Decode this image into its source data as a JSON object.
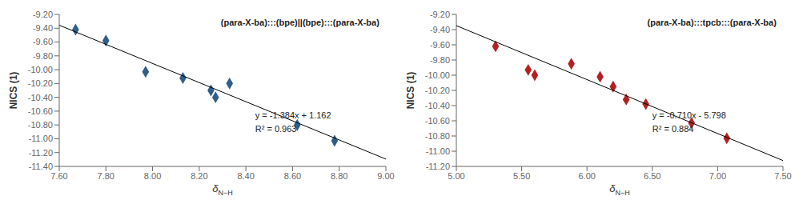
{
  "chart_data": [
    {
      "type": "scatter",
      "title": "(para-X-ba):::(bpe)||(bpe):::(para-X-ba)",
      "xlabel": "δN−H",
      "ylabel": "NICS (1)",
      "xlim": [
        7.6,
        9.0
      ],
      "ylim": [
        -11.4,
        -9.2
      ],
      "xticks": [
        {
          "value": 7.6,
          "label": "7.60"
        },
        {
          "value": 7.8,
          "label": "7.80"
        },
        {
          "value": 8.0,
          "label": "8.00"
        },
        {
          "value": 8.2,
          "label": "8.20"
        },
        {
          "value": 8.4,
          "label": "8.40"
        },
        {
          "value": 8.6,
          "label": "8.60"
        },
        {
          "value": 8.8,
          "label": "8.80"
        },
        {
          "value": 9.0,
          "label": "9.00"
        }
      ],
      "yticks": [
        {
          "value": -11.4,
          "label": "-11.40"
        },
        {
          "value": -11.2,
          "label": "-11.20"
        },
        {
          "value": -11.0,
          "label": "-11.00"
        },
        {
          "value": -10.8,
          "label": "-10.80"
        },
        {
          "value": -10.6,
          "label": "-10.60"
        },
        {
          "value": -10.4,
          "label": "-10.40"
        },
        {
          "value": -10.2,
          "label": "-10.20"
        },
        {
          "value": -10.0,
          "label": "-10.00"
        },
        {
          "value": -9.8,
          "label": "-9.80"
        },
        {
          "value": -9.6,
          "label": "-9.60"
        },
        {
          "value": -9.4,
          "label": "-9.40"
        },
        {
          "value": -9.2,
          "label": "-9.20"
        }
      ],
      "series": [
        {
          "type": "scatter",
          "color": "#2E5F8A",
          "marker": "diamond",
          "x": [
            7.67,
            7.8,
            7.97,
            8.13,
            8.25,
            8.27,
            8.33,
            8.62,
            8.78
          ],
          "values": [
            -9.42,
            -9.58,
            -10.03,
            -10.12,
            -10.3,
            -10.4,
            -10.2,
            -10.8,
            -11.03
          ]
        },
        {
          "type": "line",
          "color": "#000000",
          "x": [
            7.6,
            9.0
          ],
          "values": [
            -9.3564,
            -11.294
          ]
        }
      ],
      "annotations": [
        "y = -1.384x + 1.162",
        "R² = 0.963"
      ]
    },
    {
      "type": "scatter",
      "title": "(para-X-ba):::tpcb:::(para-X-ba)",
      "xlabel": "δN−H",
      "ylabel": "NICS (1)",
      "xlim": [
        5.0,
        7.5
      ],
      "ylim": [
        -11.2,
        -9.2
      ],
      "xticks": [
        {
          "value": 5.0,
          "label": "5.00"
        },
        {
          "value": 5.5,
          "label": "5.50"
        },
        {
          "value": 6.0,
          "label": "6.00"
        },
        {
          "value": 6.5,
          "label": "6.50"
        },
        {
          "value": 7.0,
          "label": "7.00"
        },
        {
          "value": 7.5,
          "label": "7.50"
        }
      ],
      "yticks": [
        {
          "value": -11.2,
          "label": "-11.20"
        },
        {
          "value": -11.0,
          "label": "-11.00"
        },
        {
          "value": -10.8,
          "label": "-10.80"
        },
        {
          "value": -10.6,
          "label": "-10.60"
        },
        {
          "value": -10.4,
          "label": "-10.40"
        },
        {
          "value": -10.2,
          "label": "-10.20"
        },
        {
          "value": -10.0,
          "label": "-10.00"
        },
        {
          "value": -9.8,
          "label": "-9.80"
        },
        {
          "value": -9.6,
          "label": "-9.60"
        },
        {
          "value": -9.4,
          "label": "-9.40"
        },
        {
          "value": -9.2,
          "label": "-9.20"
        }
      ],
      "series": [
        {
          "type": "scatter",
          "color": "#B22222",
          "marker": "diamond",
          "x": [
            5.3,
            5.55,
            5.6,
            5.88,
            6.1,
            6.2,
            6.3,
            6.45,
            6.8,
            7.07
          ],
          "values": [
            -9.62,
            -9.93,
            -10.0,
            -9.85,
            -10.02,
            -10.15,
            -10.32,
            -10.38,
            -10.63,
            -10.83
          ]
        },
        {
          "type": "line",
          "color": "#000000",
          "x": [
            5.0,
            7.5
          ],
          "values": [
            -9.348,
            -11.123
          ]
        }
      ],
      "annotations": [
        "y = -0.710x - 5.798",
        "R² = 0.884"
      ]
    }
  ]
}
